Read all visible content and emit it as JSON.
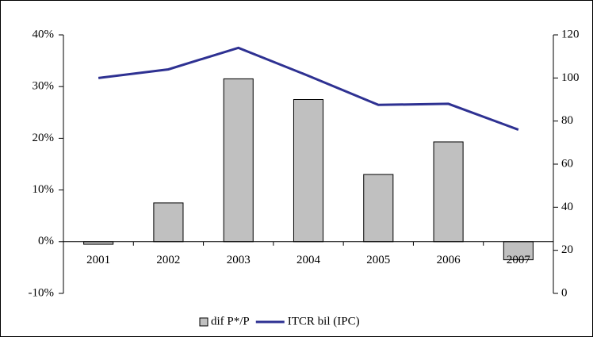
{
  "chart_data": {
    "type": "bar-line",
    "categories": [
      "2001",
      "2002",
      "2003",
      "2004",
      "2005",
      "2006",
      "2007"
    ],
    "series": [
      {
        "name": "dif P*/P",
        "color": "#c0c0c0",
        "type": "bar",
        "values": [
          -0.5,
          7.5,
          31.5,
          27.5,
          13,
          19.3,
          -3.5
        ]
      },
      {
        "name": "ITCR bil (IPC)",
        "color": "#2e3192",
        "type": "line",
        "axis": "y2",
        "values": [
          100,
          104,
          114,
          101,
          87.5,
          88,
          76
        ]
      }
    ],
    "ylim": [
      -10,
      40
    ],
    "yticks": [
      {
        "value": -10,
        "label": "-10%"
      },
      {
        "value": 0,
        "label": "0%"
      },
      {
        "value": 10,
        "label": "10%"
      },
      {
        "value": 20,
        "label": "20%"
      },
      {
        "value": 30,
        "label": "30%"
      },
      {
        "value": 40,
        "label": "40%"
      }
    ],
    "y2lim": [
      0,
      120
    ],
    "y2ticks": [
      0,
      20,
      40,
      60,
      80,
      100,
      120
    ],
    "legend": "bottom"
  }
}
